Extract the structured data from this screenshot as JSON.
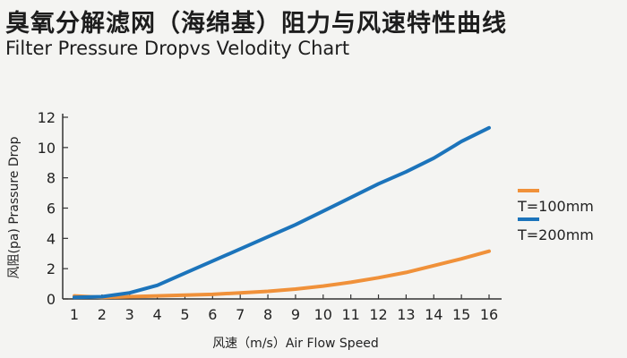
{
  "title_cn": "臭氧分解滤网（海绵基）阻力与风速特性曲线",
  "title_en": "Filter Pressure Dropvs Velodity Chart",
  "chart_data": {
    "type": "line",
    "title": "Filter Pressure Dropvs Velodity Chart",
    "xlabel": "风速（m/s）Air Flow Speed",
    "ylabel": "风阻(pa) Prassure Drop",
    "x": [
      1,
      2,
      3,
      4,
      5,
      6,
      7,
      8,
      9,
      10,
      11,
      12,
      13,
      14,
      15,
      16
    ],
    "xlim": [
      1,
      16
    ],
    "ylim": [
      0,
      12
    ],
    "yticks": [
      0,
      2,
      4,
      6,
      8,
      10,
      12
    ],
    "grid": false,
    "legend_position": "right",
    "series": [
      {
        "name": "T=100mm",
        "color": "#f0913a",
        "values": [
          0.2,
          0.1,
          0.15,
          0.2,
          0.25,
          0.3,
          0.4,
          0.5,
          0.65,
          0.85,
          1.1,
          1.4,
          1.75,
          2.2,
          2.65,
          3.15
        ]
      },
      {
        "name": "T=200mm",
        "color": "#1c74bb",
        "values": [
          0.1,
          0.15,
          0.4,
          0.9,
          1.7,
          2.5,
          3.3,
          4.1,
          4.9,
          5.8,
          6.7,
          7.6,
          8.4,
          9.3,
          10.4,
          11.3
        ]
      }
    ]
  }
}
